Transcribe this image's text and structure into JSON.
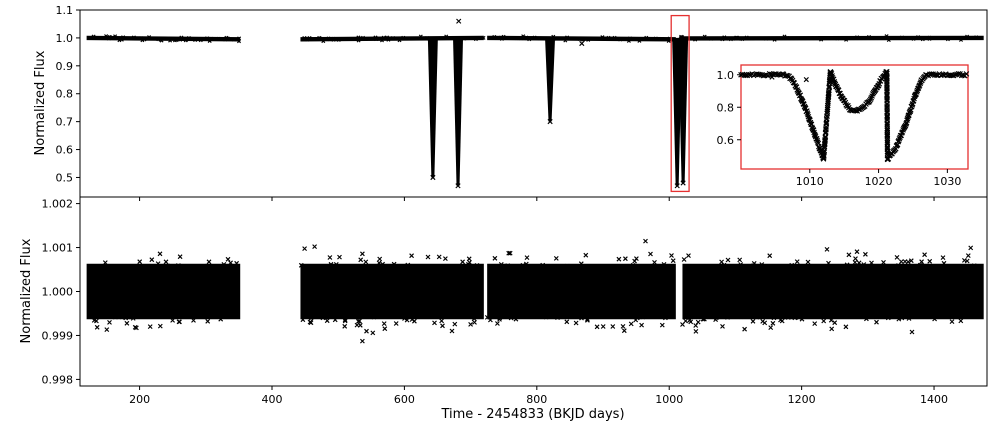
{
  "chart_data": [
    {
      "type": "scatter",
      "panel": "top",
      "marker": "x",
      "color": "#000000",
      "xlabel": "",
      "ylabel": "Normalized Flux",
      "xlim": [
        110,
        1480
      ],
      "ylim": [
        0.43,
        1.1
      ],
      "yticks": [
        0.5,
        0.6,
        0.7,
        0.8,
        0.9,
        1.0,
        1.1
      ],
      "segments": [
        {
          "x": [
            120,
            352
          ],
          "y": [
            1.0,
            0.995
          ]
        },
        {
          "x": [
            443,
            720
          ],
          "y": [
            0.995,
            1.0
          ]
        },
        {
          "x": [
            725,
            1010
          ],
          "y": [
            1.0,
            0.995
          ]
        },
        {
          "x": [
            1015,
            1475
          ],
          "y": [
            0.998,
            1.0
          ]
        }
      ],
      "dips": [
        {
          "x": 643,
          "y_min": 0.5
        },
        {
          "x": 681,
          "y_min": 0.47
        },
        {
          "x": 820,
          "y_min": 0.7
        },
        {
          "x": 1012,
          "y_min": 0.47
        },
        {
          "x": 1021,
          "y_min": 0.48
        }
      ],
      "outliers": [
        {
          "x": 682,
          "y": 1.06
        },
        {
          "x": 868,
          "y": 0.98
        }
      ],
      "highlight_region": {
        "x": [
          1003,
          1030
        ],
        "y": [
          0.45,
          1.08
        ],
        "color": "#e53030"
      }
    },
    {
      "type": "scatter",
      "panel": "inset",
      "marker": "x",
      "xlim": [
        1000,
        1033
      ],
      "ylim": [
        0.42,
        1.06
      ],
      "xticks": [
        1010,
        1020,
        1030
      ],
      "yticks": [
        0.6,
        0.8,
        1.0
      ],
      "curve": [
        {
          "x": 1000,
          "y": 1.0
        },
        {
          "x": 1006,
          "y": 1.0
        },
        {
          "x": 1007,
          "y": 0.99
        },
        {
          "x": 1008,
          "y": 0.93
        },
        {
          "x": 1009.5,
          "y": 0.78
        },
        {
          "x": 1011,
          "y": 0.6
        },
        {
          "x": 1012,
          "y": 0.48
        },
        {
          "x": 1013,
          "y": 1.02
        },
        {
          "x": 1013.8,
          "y": 0.93
        },
        {
          "x": 1014.8,
          "y": 0.85
        },
        {
          "x": 1015.8,
          "y": 0.79
        },
        {
          "x": 1016.5,
          "y": 0.775
        },
        {
          "x": 1017.5,
          "y": 0.79
        },
        {
          "x": 1018.5,
          "y": 0.83
        },
        {
          "x": 1019.5,
          "y": 0.9
        },
        {
          "x": 1020.5,
          "y": 0.98
        },
        {
          "x": 1021.2,
          "y": 1.02
        },
        {
          "x": 1021.3,
          "y": 0.48
        },
        {
          "x": 1022.5,
          "y": 0.55
        },
        {
          "x": 1024,
          "y": 0.7
        },
        {
          "x": 1025.3,
          "y": 0.87
        },
        {
          "x": 1026.3,
          "y": 0.97
        },
        {
          "x": 1027,
          "y": 1.0
        },
        {
          "x": 1033,
          "y": 1.0
        }
      ],
      "outliers": [
        {
          "x": 1004.5,
          "y": 0.985
        },
        {
          "x": 1009.5,
          "y": 0.97
        },
        {
          "x": 1013.2,
          "y": 0.96
        }
      ]
    },
    {
      "type": "scatter",
      "panel": "bottom",
      "marker": "x",
      "color": "#000000",
      "xlabel": "Time - 2454833 (BKJD days)",
      "ylabel": "Normalized Flux",
      "xlim": [
        110,
        1480
      ],
      "ylim": [
        0.99785,
        1.00215
      ],
      "xticks": [
        200,
        400,
        600,
        800,
        1000,
        1200,
        1400
      ],
      "yticks": [
        0.998,
        0.999,
        1.0,
        1.001,
        1.002
      ],
      "baseline": 1.0,
      "scatter_sigma": 0.0003,
      "segments": [
        {
          "x": [
            120,
            352
          ]
        },
        {
          "x": [
            443,
            720
          ]
        },
        {
          "x": [
            725,
            1010
          ]
        },
        {
          "x": [
            1020,
            1475
          ]
        }
      ]
    }
  ]
}
